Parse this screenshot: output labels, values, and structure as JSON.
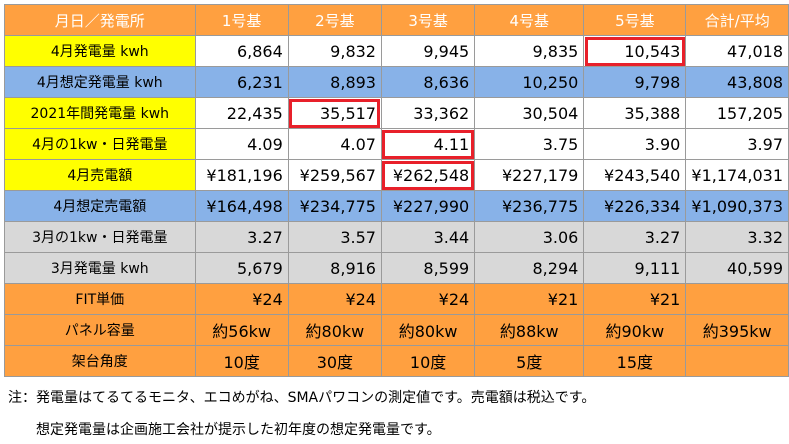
{
  "table": {
    "header": [
      "月日／発電所",
      "1号基",
      "2号基",
      "3号基",
      "4号基",
      "5号基",
      "合計/平均"
    ],
    "rows": [
      {
        "label": "4月発電量 kwh",
        "cells": [
          "6,864",
          "9,832",
          "9,945",
          "9,835",
          "10,543",
          "47,018"
        ]
      },
      {
        "label": "4月想定発電量 kwh",
        "cells": [
          "6,231",
          "8,893",
          "8,636",
          "10,250",
          "9,798",
          "43,808"
        ]
      },
      {
        "label": "2021年間発電量 kwh",
        "cells": [
          "22,435",
          "35,517",
          "33,362",
          "30,504",
          "35,388",
          "157,205"
        ]
      },
      {
        "label": "4月の1kw・日発電量",
        "cells": [
          "4.09",
          "4.07",
          "4.11",
          "3.75",
          "3.90",
          "3.97"
        ]
      },
      {
        "label": "4月売電額",
        "cells": [
          "¥181,196",
          "¥259,567",
          "¥262,548",
          "¥227,179",
          "¥243,540",
          "¥1,174,031"
        ]
      },
      {
        "label": "4月想定売電額",
        "cells": [
          "¥164,498",
          "¥234,775",
          "¥227,990",
          "¥236,775",
          "¥226,334",
          "¥1,090,373"
        ]
      },
      {
        "label": "3月の1kw・日発電量",
        "cells": [
          "3.27",
          "3.57",
          "3.44",
          "3.06",
          "3.27",
          "3.32"
        ]
      },
      {
        "label": "3月発電量 kwh",
        "cells": [
          "5,679",
          "8,916",
          "8,599",
          "8,294",
          "9,111",
          "40,599"
        ]
      },
      {
        "label": "FIT単価",
        "cells": [
          "¥24",
          "¥24",
          "¥24",
          "¥21",
          "¥21",
          ""
        ]
      },
      {
        "label": "パネル容量",
        "cells": [
          "約56kw",
          "約80kw",
          "約80kw",
          "約88kw",
          "約90kw",
          "約395kw"
        ]
      },
      {
        "label": "架台角度",
        "cells": [
          "10度",
          "30度",
          "10度",
          "5度",
          "15度",
          ""
        ]
      }
    ]
  },
  "notes": {
    "line1": "注：発電量はてるてるモニタ、エコめがね、SMAパワコンの測定値です。売電額は税込です。",
    "line2": "想定発電量は企画施工会社が提示した初年度の想定発電量です。"
  },
  "colors": {
    "header_orange": "#ffa040",
    "label_yellow": "#ffff00",
    "row_blue": "#88b2e8",
    "row_gray": "#d8d8d8",
    "highlight_red": "#e8202a"
  }
}
